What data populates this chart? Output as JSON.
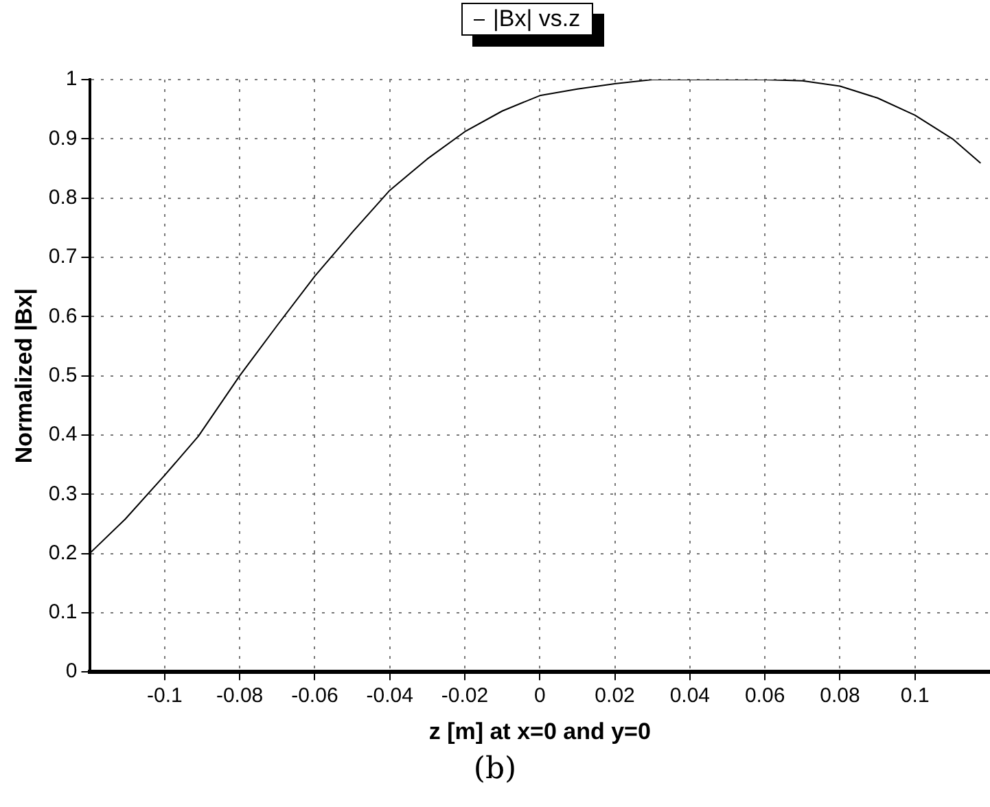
{
  "chart_data": {
    "type": "line",
    "xlabel": "z [m] at x=0 and y=0",
    "ylabel": "Normalized |Bx|",
    "annotations": [
      "(b)"
    ],
    "series": [
      {
        "name": "|Bx| vs.z",
        "color": "#000000",
        "x": [
          -0.12,
          -0.1105,
          -0.1,
          -0.091,
          -0.08,
          -0.07,
          -0.06,
          -0.05,
          -0.04,
          -0.03,
          -0.02,
          -0.01,
          0,
          0.01,
          0.02,
          0.03,
          0.04,
          0.05,
          0.06,
          0.07,
          0.08,
          0.09,
          0.1,
          0.11,
          0.1175
        ],
        "values": [
          0.2,
          0.258,
          0.332,
          0.398,
          0.5,
          0.585,
          0.668,
          0.742,
          0.813,
          0.866,
          0.912,
          0.947,
          0.973,
          0.984,
          0.993,
          1.0,
          1.0,
          1.0,
          1.0,
          0.998,
          0.989,
          0.969,
          0.94,
          0.9,
          0.859
        ]
      }
    ],
    "xlim": [
      -0.12,
      0.12
    ],
    "xticks": [
      -0.1,
      -0.08,
      -0.06,
      -0.04,
      -0.02,
      0,
      0.02,
      0.04,
      0.06,
      0.08,
      0.1
    ],
    "ylim": [
      0,
      1
    ],
    "yticks": [
      0,
      0.1,
      0.2,
      0.3,
      0.4,
      0.5,
      0.6,
      0.7,
      0.8,
      0.9,
      1
    ],
    "grid": true,
    "legend": "top",
    "marker": "none",
    "line_style": "solid"
  }
}
